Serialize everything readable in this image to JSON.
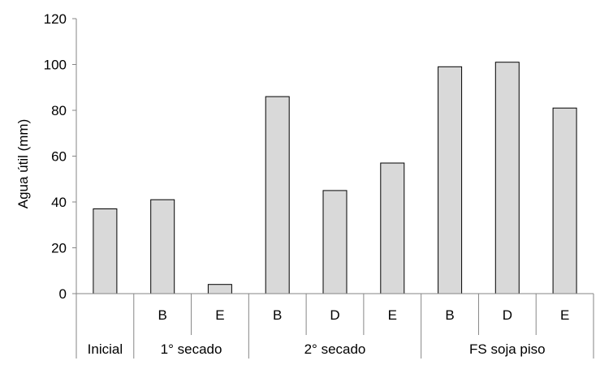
{
  "chart_data": {
    "type": "bar",
    "ylabel": "Agua útil (mm)",
    "ylim": [
      0,
      120
    ],
    "yticks": [
      0,
      20,
      40,
      60,
      80,
      100,
      120
    ],
    "grid": false,
    "legend": "none",
    "bar_color": "#d9d9d9",
    "categories": [
      {
        "group": "Inicial",
        "sub": ""
      },
      {
        "group": "1° secado",
        "sub": "B"
      },
      {
        "group": "1° secado",
        "sub": "E"
      },
      {
        "group": "2° secado",
        "sub": "B"
      },
      {
        "group": "2° secado",
        "sub": "D"
      },
      {
        "group": "2° secado",
        "sub": "E"
      },
      {
        "group": "FS soja piso",
        "sub": "B"
      },
      {
        "group": "FS soja piso",
        "sub": "D"
      },
      {
        "group": "FS soja piso",
        "sub": "E"
      }
    ],
    "groups": [
      "Inicial",
      "1° secado",
      "2° secado",
      "FS soja piso"
    ],
    "values": [
      37,
      41,
      4,
      86,
      45,
      57,
      99,
      101,
      81
    ]
  }
}
